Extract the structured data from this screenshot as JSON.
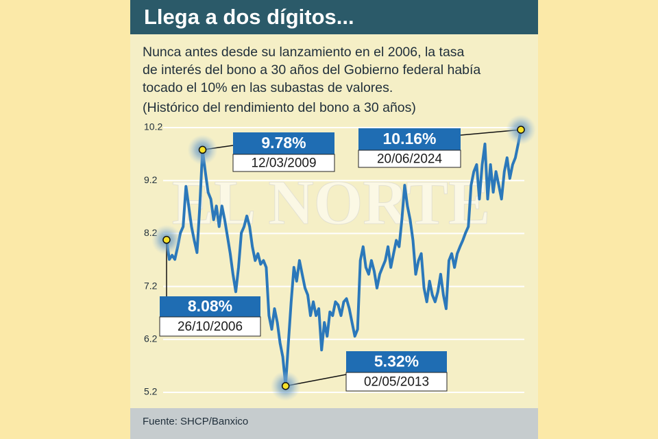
{
  "chart_data": {
    "type": "line",
    "title": "Llega a dos dígitos...",
    "subtitle_lines": [
      "Nunca antes desde su lanzamiento en el 2006, la tasa",
      "de interés del bono a 30 años del Gobierno federal había",
      "tocado el 10% en las subastas de valores."
    ],
    "note": "(Histórico del rendimiento del bono a 30 años)",
    "source": "Fuente: SHCP/Banxico",
    "watermark": "EL NORTE",
    "color": "#2b78ba",
    "ylim": [
      5.2,
      10.2
    ],
    "yticks": [
      10.2,
      9.2,
      8.2,
      7.2,
      6.2,
      5.2
    ],
    "grid": true,
    "values": [
      8.08,
      7.71,
      7.79,
      7.71,
      7.95,
      8.21,
      8.33,
      9.09,
      8.72,
      8.33,
      8.07,
      7.84,
      8.72,
      9.78,
      9.37,
      8.98,
      8.85,
      8.46,
      8.72,
      8.33,
      8.72,
      8.46,
      8.14,
      7.82,
      7.43,
      7.1,
      7.56,
      8.21,
      8.33,
      8.53,
      8.33,
      7.95,
      7.69,
      7.82,
      7.62,
      7.69,
      7.56,
      6.65,
      6.39,
      6.78,
      6.52,
      6.13,
      5.87,
      5.32,
      6.13,
      6.91,
      7.56,
      7.3,
      7.69,
      7.43,
      7.17,
      7.04,
      6.65,
      6.91,
      6.65,
      6.78,
      6.0,
      6.52,
      6.26,
      6.72,
      6.65,
      6.91,
      6.85,
      6.65,
      6.91,
      6.97,
      6.78,
      6.52,
      6.26,
      6.39,
      7.69,
      7.95,
      7.56,
      7.43,
      7.69,
      7.49,
      7.17,
      7.43,
      7.56,
      7.69,
      7.95,
      7.56,
      7.82,
      8.07,
      7.95,
      8.46,
      9.11,
      8.72,
      8.46,
      8.07,
      7.43,
      7.69,
      7.82,
      7.17,
      6.91,
      7.3,
      7.04,
      6.91,
      7.1,
      7.43,
      7.04,
      6.78,
      7.69,
      7.82,
      7.56,
      7.82,
      7.95,
      8.07,
      8.21,
      8.33,
      9.11,
      9.37,
      9.5,
      8.85,
      9.5,
      9.89,
      8.85,
      9.5,
      8.98,
      9.37,
      9.11,
      8.85,
      9.37,
      9.63,
      9.24,
      9.5,
      9.63,
      9.89,
      10.16
    ],
    "annotations": [
      {
        "value": 9.78,
        "label": "9.78%",
        "date": "12/03/2009"
      },
      {
        "value": 10.16,
        "label": "10.16%",
        "date": "20/06/2024"
      },
      {
        "value": 8.08,
        "label": "8.08%",
        "date": "26/10/2006"
      },
      {
        "value": 5.32,
        "label": "5.32%",
        "date": "02/05/2013"
      }
    ]
  }
}
